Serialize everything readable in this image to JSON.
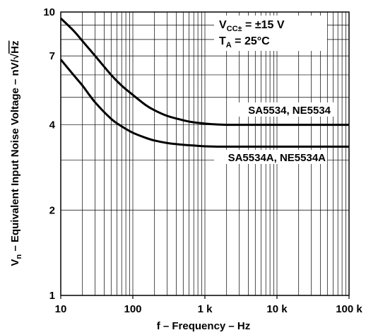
{
  "chart_data": {
    "type": "line",
    "x_scale": "log",
    "y_scale": "log",
    "xlim": [
      10,
      100000
    ],
    "ylim": [
      1,
      10
    ],
    "x_ticks": [
      {
        "value": 10,
        "label": "10"
      },
      {
        "value": 100,
        "label": "100"
      },
      {
        "value": 1000,
        "label": "1 k"
      },
      {
        "value": 10000,
        "label": "10 k"
      },
      {
        "value": 100000,
        "label": "100 k"
      }
    ],
    "y_ticks": [
      {
        "value": 1,
        "label": "1"
      },
      {
        "value": 2,
        "label": "2"
      },
      {
        "value": 4,
        "label": "4"
      },
      {
        "value": 7,
        "label": "7"
      },
      {
        "value": 10,
        "label": "10"
      }
    ],
    "xlabel": "f – Frequency – Hz",
    "ylabel": {
      "symbol": "V",
      "subscript": "n",
      "text": " – Equivalent Input Noise Voltage – nV/",
      "radical": "√",
      "radicand": "Hz"
    },
    "grid": true,
    "conditions": [
      {
        "symbol": "V",
        "subscript": "CC±",
        "text": " = ±15 V"
      },
      {
        "symbol": "T",
        "subscript": "A",
        "text": " = 25°C"
      }
    ],
    "series": [
      {
        "name": "SA5534, NE5534",
        "x": [
          10,
          15,
          20,
          30,
          50,
          70,
          100,
          150,
          200,
          300,
          500,
          700,
          1000,
          1500,
          2000,
          3000,
          5000,
          10000,
          100000
        ],
        "y": [
          9.5,
          8.6,
          7.9,
          7.0,
          6.0,
          5.5,
          5.1,
          4.7,
          4.5,
          4.3,
          4.15,
          4.08,
          4.04,
          4.01,
          4.0,
          4.0,
          4.0,
          4.0,
          4.0
        ]
      },
      {
        "name": "SA5534A, NE5534A",
        "x": [
          10,
          15,
          20,
          30,
          50,
          70,
          100,
          150,
          200,
          300,
          500,
          700,
          1000,
          1500,
          2000,
          3000,
          5000,
          10000,
          100000
        ],
        "y": [
          6.8,
          6.0,
          5.5,
          4.8,
          4.2,
          3.95,
          3.75,
          3.6,
          3.52,
          3.45,
          3.4,
          3.38,
          3.36,
          3.35,
          3.35,
          3.35,
          3.35,
          3.35,
          3.35
        ]
      }
    ]
  }
}
